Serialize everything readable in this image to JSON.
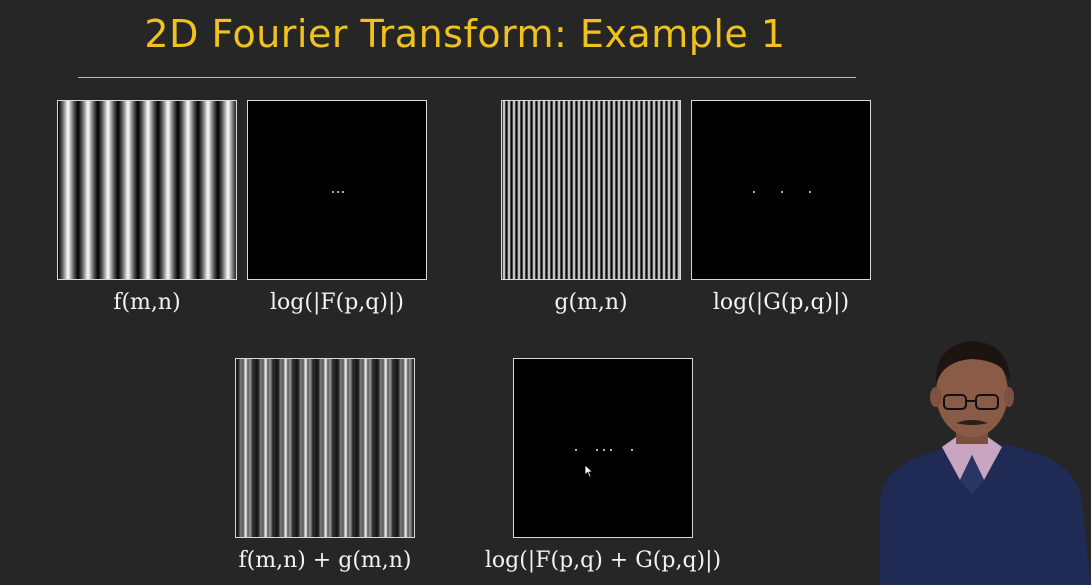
{
  "slide": {
    "title": "2D Fourier Transform: Example 1"
  },
  "panels": {
    "f": {
      "caption": "f(m,n)"
    },
    "F": {
      "caption": "log(|F(p,q)|)"
    },
    "g": {
      "caption": "g(m,n)"
    },
    "G": {
      "caption": "log(|G(p,q)|)"
    },
    "fg": {
      "caption": "f(m,n) + g(m,n)"
    },
    "FG": {
      "caption": "log(|F(p,q) + G(p,q)|)"
    }
  },
  "colors": {
    "title": "#F0C11F",
    "background": "#262626"
  }
}
